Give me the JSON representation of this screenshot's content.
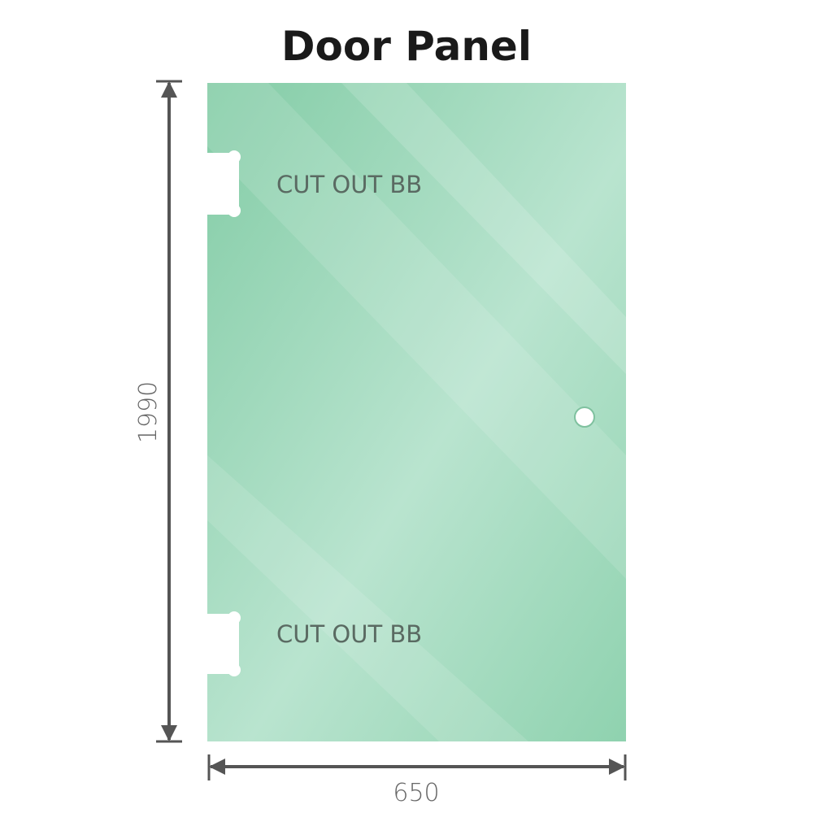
{
  "title": "Door Panel",
  "panel": {
    "color": "#86cfa9",
    "cutout_top_label": "CUT OUT BB",
    "cutout_bottom_label": "CUT OUT BB"
  },
  "dimensions": {
    "height": "1990",
    "width": "650",
    "line_color": "#555555"
  }
}
